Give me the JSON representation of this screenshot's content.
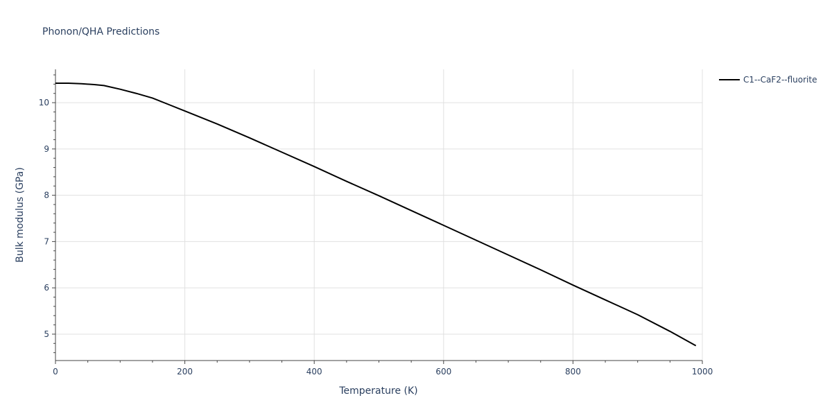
{
  "chart_data": {
    "type": "line",
    "title": "Phonon/QHA Predictions",
    "xlabel": "Temperature (K)",
    "ylabel": "Bulk modulus (GPa)",
    "xlim": [
      0,
      1000
    ],
    "ylim": [
      4.43,
      10.72
    ],
    "xticks": [
      0,
      200,
      400,
      600,
      800,
      1000
    ],
    "xtick_labels": [
      "0",
      "200",
      "400",
      "600",
      "800",
      "1000"
    ],
    "yticks": [
      5,
      6,
      7,
      8,
      9,
      10
    ],
    "ytick_labels": [
      "5",
      "6",
      "7",
      "8",
      "9",
      "10"
    ],
    "grid": true,
    "legend_position": "top-right",
    "colors": {
      "series": "#000000",
      "grid": "#e0e0e0",
      "text": "#2a3f5f"
    },
    "series": [
      {
        "name": "C1--CaF2--fluorite",
        "x": [
          0,
          20,
          40,
          60,
          75,
          100,
          125,
          150,
          175,
          200,
          250,
          300,
          350,
          400,
          450,
          500,
          550,
          600,
          650,
          700,
          750,
          800,
          850,
          900,
          950,
          990
        ],
        "y": [
          10.42,
          10.42,
          10.41,
          10.39,
          10.37,
          10.29,
          10.2,
          10.1,
          9.96,
          9.82,
          9.54,
          9.24,
          8.93,
          8.62,
          8.3,
          7.99,
          7.67,
          7.35,
          7.03,
          6.71,
          6.39,
          6.06,
          5.74,
          5.42,
          5.06,
          4.75
        ]
      }
    ]
  }
}
